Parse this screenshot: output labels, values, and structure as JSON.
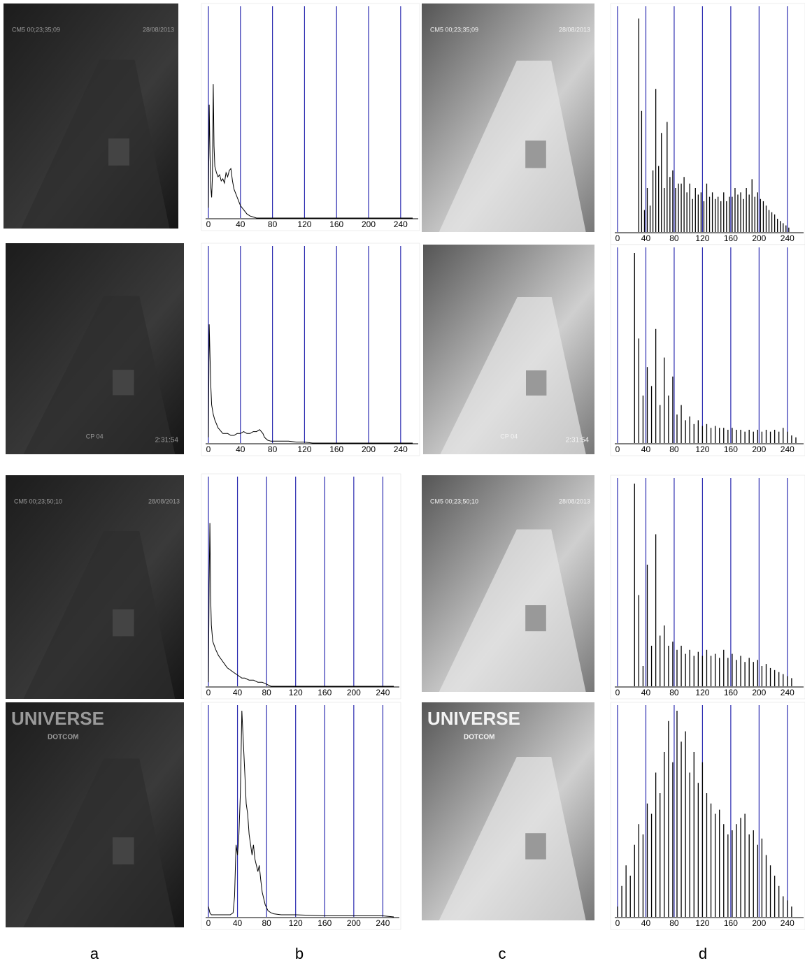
{
  "labels": [
    "a",
    "b",
    "c",
    "d"
  ],
  "images": [
    {
      "texts": [
        "CM5 00;23;35;09",
        "28/08/2013"
      ]
    },
    {
      "texts": [
        "CM5 00;23;35;09",
        "28/08/2013"
      ]
    },
    {
      "texts": [
        "CP 04",
        "2:31:54"
      ]
    },
    {
      "texts": [
        "CP 04",
        "2:31:54"
      ]
    },
    {
      "texts": [
        "CM5 00;23;50;10",
        "28/08/2013"
      ]
    },
    {
      "texts": [
        "CM5 00;23;50;10",
        "28/08/2013"
      ]
    },
    {
      "texts": [
        "UNIVERSE",
        "DOTCOM"
      ]
    },
    {
      "texts": [
        "UNIVERSE",
        "DOTCOM"
      ]
    }
  ],
  "chart_data": [
    {
      "type": "line",
      "color": "#000000",
      "grid": true,
      "grid_color": "#2a2ab0",
      "xlim": [
        0,
        255
      ],
      "ylim": [
        0,
        100
      ],
      "xticks": [
        0,
        40,
        80,
        120,
        160,
        200,
        240
      ],
      "x": [
        0,
        1,
        2,
        3,
        4,
        5,
        6,
        7,
        8,
        10,
        12,
        14,
        16,
        18,
        20,
        22,
        24,
        26,
        28,
        30,
        32,
        34,
        36,
        38,
        40,
        44,
        48,
        52,
        56,
        60,
        255
      ],
      "values": [
        5,
        55,
        30,
        15,
        10,
        20,
        65,
        35,
        25,
        22,
        20,
        21,
        18,
        19,
        17,
        22,
        20,
        23,
        24,
        18,
        14,
        12,
        10,
        8,
        6,
        4,
        2,
        1,
        0.5,
        0,
        0
      ]
    },
    {
      "type": "bar",
      "color": "#000000",
      "grid": true,
      "grid_color": "#2a2ab0",
      "xlim": [
        0,
        255
      ],
      "ylim": [
        0,
        100
      ],
      "xticks": [
        0,
        40,
        80,
        120,
        160,
        200,
        240
      ],
      "x": [
        30,
        34,
        38,
        42,
        46,
        50,
        54,
        58,
        62,
        66,
        70,
        74,
        78,
        82,
        86,
        90,
        94,
        98,
        102,
        106,
        110,
        114,
        118,
        122,
        126,
        130,
        134,
        138,
        142,
        146,
        150,
        154,
        158,
        162,
        166,
        170,
        174,
        178,
        182,
        186,
        190,
        194,
        198,
        202,
        206,
        210,
        214,
        218,
        222,
        226,
        230,
        234,
        238,
        242
      ],
      "values": [
        97,
        55,
        10,
        20,
        12,
        28,
        65,
        30,
        45,
        20,
        50,
        25,
        28,
        20,
        22,
        22,
        25,
        18,
        22,
        15,
        20,
        17,
        18,
        14,
        22,
        16,
        18,
        15,
        16,
        14,
        18,
        14,
        16,
        16,
        20,
        17,
        18,
        15,
        20,
        17,
        24,
        16,
        18,
        15,
        14,
        12,
        10,
        9,
        8,
        6,
        5,
        4,
        3,
        2
      ]
    },
    {
      "type": "line",
      "color": "#000000",
      "grid": true,
      "grid_color": "#2a2ab0",
      "xlim": [
        0,
        255
      ],
      "ylim": [
        0,
        100
      ],
      "xticks": [
        0,
        40,
        80,
        120,
        160,
        200,
        240
      ],
      "x": [
        0,
        1,
        2,
        3,
        4,
        6,
        8,
        10,
        12,
        14,
        16,
        18,
        20,
        24,
        28,
        32,
        36,
        40,
        44,
        48,
        52,
        56,
        60,
        64,
        68,
        70,
        74,
        78,
        84,
        90,
        100,
        110,
        120,
        130,
        255
      ],
      "values": [
        3,
        62,
        45,
        30,
        20,
        15,
        12,
        10,
        8,
        7,
        6,
        5,
        5,
        5,
        4,
        4,
        5,
        5,
        6,
        5,
        5,
        6,
        6,
        7,
        5,
        3,
        1.5,
        1,
        1,
        1,
        1,
        0.5,
        0.5,
        0,
        0
      ]
    },
    {
      "type": "bar",
      "color": "#000000",
      "grid": true,
      "grid_color": "#2a2ab0",
      "xlim": [
        0,
        255
      ],
      "ylim": [
        0,
        100
      ],
      "xticks": [
        0,
        40,
        80,
        120,
        160,
        200,
        240
      ],
      "x": [
        24,
        30,
        36,
        42,
        48,
        54,
        60,
        66,
        72,
        78,
        84,
        90,
        96,
        102,
        108,
        114,
        120,
        126,
        132,
        138,
        144,
        150,
        156,
        162,
        168,
        174,
        180,
        186,
        192,
        198,
        204,
        210,
        216,
        222,
        228,
        234,
        240,
        246,
        252
      ],
      "values": [
        100,
        55,
        25,
        40,
        30,
        60,
        20,
        45,
        25,
        35,
        15,
        20,
        12,
        14,
        10,
        12,
        9,
        10,
        8,
        9,
        8,
        8,
        7,
        8,
        7,
        7,
        6,
        7,
        6,
        7,
        6,
        7,
        6,
        7,
        6,
        8,
        6,
        4,
        3
      ]
    },
    {
      "type": "line",
      "color": "#000000",
      "grid": true,
      "grid_color": "#2a2ab0",
      "xlim": [
        0,
        255
      ],
      "ylim": [
        0,
        100
      ],
      "xticks": [
        0,
        40,
        80,
        120,
        160,
        200,
        240
      ],
      "x": [
        0,
        1,
        2,
        3,
        4,
        6,
        8,
        10,
        14,
        18,
        22,
        26,
        30,
        34,
        38,
        42,
        46,
        50,
        56,
        62,
        68,
        74,
        80,
        86,
        255
      ],
      "values": [
        2,
        50,
        80,
        45,
        30,
        22,
        20,
        18,
        15,
        13,
        11,
        9,
        8,
        7,
        6,
        5,
        4,
        4,
        3,
        3,
        2,
        2,
        1,
        0,
        0
      ]
    },
    {
      "type": "bar",
      "color": "#000000",
      "grid": true,
      "grid_color": "#2a2ab0",
      "xlim": [
        0,
        255
      ],
      "ylim": [
        0,
        100
      ],
      "xticks": [
        0,
        40,
        80,
        120,
        160,
        200,
        240
      ],
      "x": [
        24,
        30,
        36,
        42,
        48,
        54,
        60,
        66,
        72,
        78,
        84,
        90,
        96,
        102,
        108,
        114,
        120,
        126,
        132,
        138,
        144,
        150,
        156,
        162,
        168,
        174,
        180,
        186,
        192,
        198,
        204,
        210,
        216,
        222,
        228,
        234,
        240,
        246
      ],
      "values": [
        100,
        45,
        10,
        60,
        20,
        75,
        25,
        30,
        20,
        22,
        18,
        20,
        16,
        18,
        15,
        17,
        15,
        18,
        15,
        16,
        14,
        18,
        14,
        16,
        13,
        15,
        12,
        14,
        12,
        13,
        10,
        11,
        9,
        8,
        7,
        6,
        5,
        4
      ]
    },
    {
      "type": "line",
      "color": "#000000",
      "grid": true,
      "grid_color": "#2a2ab0",
      "xlim": [
        0,
        255
      ],
      "ylim": [
        0,
        100
      ],
      "xticks": [
        0,
        40,
        80,
        120,
        160,
        200,
        240
      ],
      "x": [
        0,
        2,
        4,
        10,
        20,
        30,
        34,
        36,
        38,
        40,
        42,
        44,
        46,
        48,
        50,
        52,
        54,
        56,
        58,
        60,
        62,
        64,
        66,
        68,
        70,
        72,
        74,
        78,
        82,
        86,
        90,
        100,
        120,
        160,
        200,
        240,
        255
      ],
      "values": [
        5,
        2,
        1,
        1,
        1,
        1,
        2,
        10,
        35,
        30,
        40,
        60,
        100,
        85,
        70,
        55,
        50,
        40,
        35,
        30,
        35,
        28,
        25,
        22,
        25,
        18,
        12,
        6,
        3,
        2,
        1.5,
        1,
        1,
        0.5,
        0.5,
        0.5,
        0
      ]
    },
    {
      "type": "bar",
      "color": "#000000",
      "grid": true,
      "grid_color": "#2a2ab0",
      "xlim": [
        0,
        255
      ],
      "ylim": [
        0,
        100
      ],
      "xticks": [
        0,
        40,
        80,
        120,
        160,
        200,
        240
      ],
      "x": [
        0,
        6,
        12,
        18,
        24,
        30,
        36,
        42,
        48,
        54,
        60,
        66,
        72,
        78,
        84,
        90,
        96,
        102,
        108,
        114,
        120,
        126,
        132,
        138,
        144,
        150,
        156,
        162,
        168,
        174,
        180,
        186,
        192,
        198,
        204,
        210,
        216,
        222,
        228,
        234,
        240,
        246
      ],
      "values": [
        5,
        15,
        25,
        20,
        35,
        45,
        40,
        55,
        50,
        70,
        60,
        80,
        95,
        75,
        100,
        85,
        90,
        70,
        80,
        65,
        75,
        60,
        55,
        50,
        52,
        45,
        40,
        42,
        45,
        48,
        50,
        40,
        42,
        35,
        38,
        30,
        25,
        20,
        15,
        10,
        8,
        5
      ]
    }
  ]
}
